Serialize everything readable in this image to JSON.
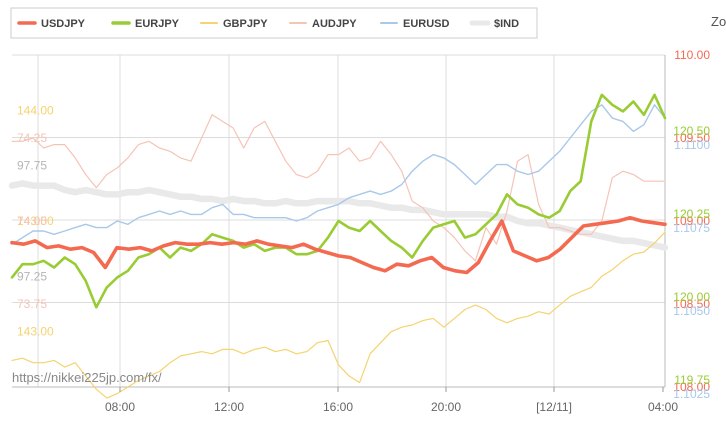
{
  "zoom_label": "Zo",
  "watermark": "https://nikkei225jp.com/fx/",
  "chart_data": {
    "type": "line",
    "x_ticks": [
      "08:00",
      "12:00",
      "16:00",
      "20:00",
      "[12/11]",
      "04:00"
    ],
    "x_tick_colors": [
      "#666666",
      "#666666",
      "#666666",
      "#666666",
      "#b8a040",
      "#666666"
    ],
    "legend_placement": "top-left",
    "grid": true,
    "series": [
      {
        "name": "USDJPY",
        "color": "#f46a50",
        "width": 3.6,
        "ylim": [
          108.0,
          110.0
        ],
        "ticks": [
          "110.00",
          "109.50",
          "109.00",
          "108.50",
          "108.00"
        ],
        "tick_side": "right",
        "tick_offset": 0,
        "values": [
          108.87,
          108.86,
          108.88,
          108.84,
          108.85,
          108.83,
          108.84,
          108.81,
          108.72,
          108.84,
          108.83,
          108.84,
          108.82,
          108.85,
          108.87,
          108.86,
          108.86,
          108.87,
          108.86,
          108.87,
          108.86,
          108.88,
          108.86,
          108.85,
          108.84,
          108.86,
          108.83,
          108.81,
          108.79,
          108.78,
          108.75,
          108.72,
          108.7,
          108.74,
          108.73,
          108.76,
          108.78,
          108.72,
          108.7,
          108.69,
          108.75,
          108.88,
          109.0,
          108.82,
          108.79,
          108.76,
          108.78,
          108.83,
          108.9,
          108.97,
          108.98,
          108.99,
          109.0,
          109.02,
          109.0,
          108.99,
          108.98
        ]
      },
      {
        "name": "EURJPY",
        "color": "#99cc33",
        "width": 2.6,
        "ylim": [
          119.75,
          120.75
        ],
        "ticks": [
          "120.50",
          "120.25",
          "120.00",
          "119.75"
        ],
        "tick_side": "right",
        "tick_offset": -7,
        "values": [
          120.08,
          120.12,
          120.12,
          120.13,
          120.11,
          120.14,
          120.12,
          120.07,
          119.99,
          120.05,
          120.08,
          120.1,
          120.14,
          120.15,
          120.17,
          120.14,
          120.17,
          120.16,
          120.18,
          120.21,
          120.2,
          120.19,
          120.17,
          120.18,
          120.16,
          120.17,
          120.17,
          120.15,
          120.15,
          120.16,
          120.2,
          120.25,
          120.23,
          120.22,
          120.25,
          120.22,
          120.19,
          120.17,
          120.14,
          120.19,
          120.23,
          120.24,
          120.25,
          120.2,
          120.21,
          120.24,
          120.27,
          120.33,
          120.3,
          120.29,
          120.27,
          120.26,
          120.28,
          120.34,
          120.37,
          120.55,
          120.63,
          120.6,
          120.58,
          120.61,
          120.57,
          120.63,
          120.56
        ]
      },
      {
        "name": "GBPJPY",
        "color": "#f5d36e",
        "width": 1.2,
        "ylim": [
          142.75,
          144.25
        ],
        "ticks": [
          "144.00",
          "143.50",
          "143.00"
        ],
        "tick_side": "left",
        "tick_offset": 0,
        "values": [
          142.87,
          142.88,
          142.86,
          142.86,
          142.87,
          142.84,
          142.86,
          142.8,
          142.74,
          142.7,
          142.72,
          142.75,
          142.78,
          142.8,
          142.82,
          142.86,
          142.89,
          142.9,
          142.91,
          142.9,
          142.92,
          142.92,
          142.9,
          142.92,
          142.93,
          142.91,
          142.92,
          142.9,
          142.91,
          142.95,
          142.96,
          142.85,
          142.8,
          142.77,
          142.9,
          142.95,
          143.0,
          143.02,
          143.03,
          143.05,
          143.06,
          143.02,
          143.06,
          143.1,
          143.12,
          143.1,
          143.06,
          143.04,
          143.06,
          143.07,
          143.09,
          143.08,
          143.12,
          143.16,
          143.18,
          143.2,
          143.25,
          143.28,
          143.32,
          143.35,
          143.36,
          143.4,
          143.45
        ]
      },
      {
        "name": "AUDJPY",
        "color": "#f5c4b6",
        "width": 1.2,
        "ylim": [
          73.5,
          74.5
        ],
        "ticks": [
          "74.25",
          "74.00",
          "73.75"
        ],
        "tick_side": "left",
        "tick_offset": 0,
        "values": [
          74.24,
          74.24,
          74.25,
          74.22,
          74.23,
          74.23,
          74.19,
          74.14,
          74.1,
          74.14,
          74.16,
          74.19,
          74.23,
          74.24,
          74.22,
          74.21,
          74.19,
          74.18,
          74.25,
          74.32,
          74.3,
          74.28,
          74.22,
          74.28,
          74.3,
          74.24,
          74.18,
          74.14,
          74.13,
          74.15,
          74.2,
          74.2,
          74.22,
          74.18,
          74.19,
          74.24,
          74.2,
          74.15,
          74.06,
          74.04,
          74.0,
          73.98,
          73.95,
          73.91,
          73.88,
          73.98,
          73.93,
          74.03,
          74.18,
          74.2,
          74.05,
          73.98,
          73.98,
          73.97,
          73.96,
          73.96,
          74.0,
          74.13,
          74.15,
          74.14,
          74.12,
          74.12,
          74.12
        ]
      },
      {
        "name": "EURUSD",
        "color": "#a9c8ea",
        "width": 1.4,
        "ylim": [
          1.1025,
          1.1125
        ],
        "ticks": [
          "1.1100",
          "1.1075",
          "1.1050",
          "1.1025"
        ],
        "tick_side": "right",
        "tick_offset": 7,
        "values": [
          1.1068,
          1.107,
          1.1072,
          1.1072,
          1.1071,
          1.1072,
          1.1073,
          1.1074,
          1.1073,
          1.1073,
          1.1075,
          1.1074,
          1.1076,
          1.1077,
          1.1078,
          1.1077,
          1.1078,
          1.1077,
          1.1077,
          1.1079,
          1.108,
          1.1077,
          1.1077,
          1.1076,
          1.1076,
          1.1076,
          1.1076,
          1.1075,
          1.1076,
          1.1078,
          1.1079,
          1.108,
          1.1082,
          1.1083,
          1.1084,
          1.1083,
          1.1084,
          1.1086,
          1.109,
          1.1093,
          1.1095,
          1.1094,
          1.1092,
          1.1089,
          1.1086,
          1.1089,
          1.1092,
          1.1092,
          1.109,
          1.1089,
          1.109,
          1.1093,
          1.1096,
          1.11,
          1.1104,
          1.1108,
          1.111,
          1.1106,
          1.1105,
          1.1102,
          1.1104,
          1.111,
          1.1106
        ]
      },
      {
        "name": "$IND",
        "color": "#e9e9e9",
        "width": 6.5,
        "ylim": [
          96.75,
          98.25
        ],
        "ticks": [
          "97.75",
          "97.25"
        ],
        "tick_side": "left",
        "tick_offset": 0,
        "values": [
          97.66,
          97.67,
          97.66,
          97.66,
          97.66,
          97.64,
          97.63,
          97.64,
          97.63,
          97.62,
          97.62,
          97.63,
          97.63,
          97.64,
          97.63,
          97.62,
          97.61,
          97.61,
          97.6,
          97.6,
          97.59,
          97.6,
          97.59,
          97.59,
          97.58,
          97.58,
          97.59,
          97.58,
          97.58,
          97.59,
          97.59,
          97.59,
          97.59,
          97.58,
          97.58,
          97.57,
          97.56,
          97.56,
          97.55,
          97.55,
          97.54,
          97.53,
          97.53,
          97.53,
          97.53,
          97.53,
          97.52,
          97.52,
          97.5,
          97.49,
          97.49,
          97.48,
          97.47,
          97.46,
          97.45,
          97.44,
          97.43,
          97.42,
          97.41,
          97.41,
          97.4,
          97.39,
          97.38
        ]
      }
    ]
  }
}
